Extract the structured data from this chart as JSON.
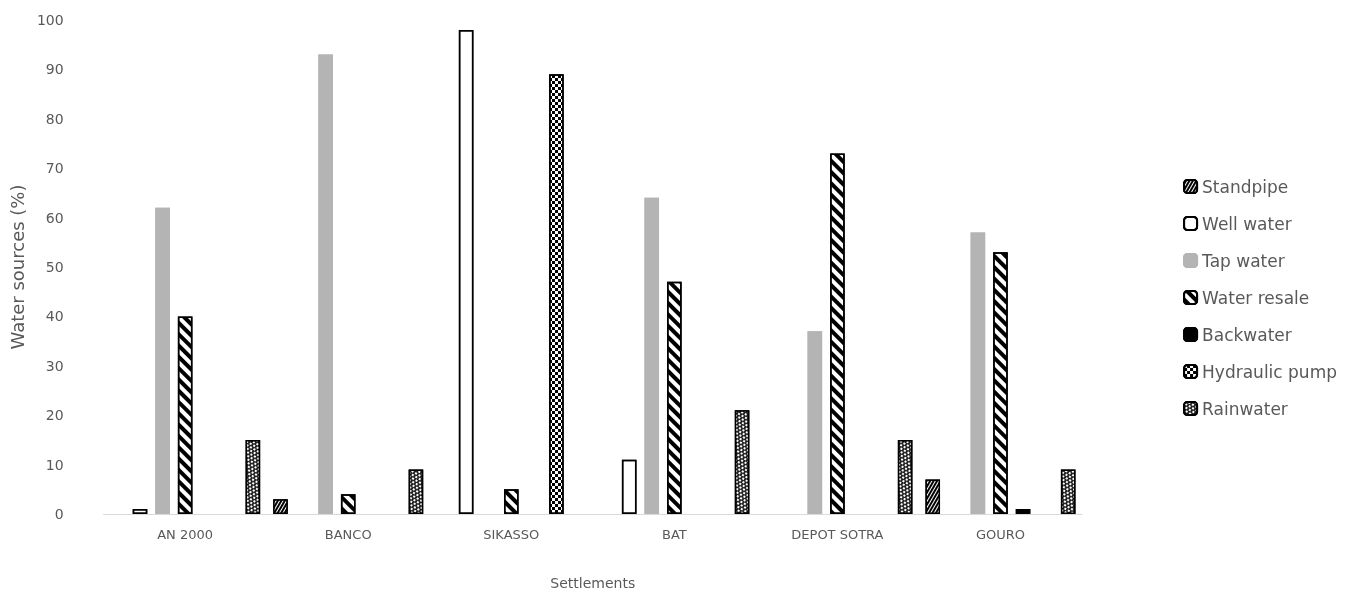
{
  "chart_data": {
    "type": "bar",
    "xlabel": "Settlements",
    "ylabel": "Water sources (%)",
    "categories": [
      "AN 2000",
      "BANCO",
      "SIKASSO",
      "BAT",
      "DEPOT SOTRA",
      "GOURO"
    ],
    "series": [
      {
        "name": "Standpipe",
        "color": "#000000",
        "values": [
          null,
          3,
          null,
          null,
          null,
          7
        ]
      },
      {
        "name": "Well water",
        "color": "#ffffff",
        "values": [
          1,
          null,
          98,
          11,
          null,
          null
        ]
      },
      {
        "name": "Tap water",
        "color": "#b4b4b4",
        "values": [
          62,
          93,
          null,
          64,
          37,
          57
        ]
      },
      {
        "name": "Water resale",
        "color": "#ffffff",
        "values": [
          40,
          4,
          5,
          47,
          73,
          53
        ]
      },
      {
        "name": "Backwater",
        "color": "#000000",
        "values": [
          null,
          null,
          null,
          null,
          null,
          1
        ]
      },
      {
        "name": "Hydraulic pump",
        "color": "#ffffff",
        "values": [
          null,
          null,
          89,
          null,
          null,
          null
        ]
      },
      {
        "name": "Rainwater",
        "color": "#222222",
        "values": [
          15,
          9,
          null,
          21,
          15,
          9
        ]
      }
    ],
    "ylim": [
      0,
      100
    ],
    "yticks": [
      0,
      10,
      20,
      30,
      40,
      50,
      60,
      70,
      80,
      90,
      100
    ],
    "grid": false,
    "legend": "right"
  }
}
